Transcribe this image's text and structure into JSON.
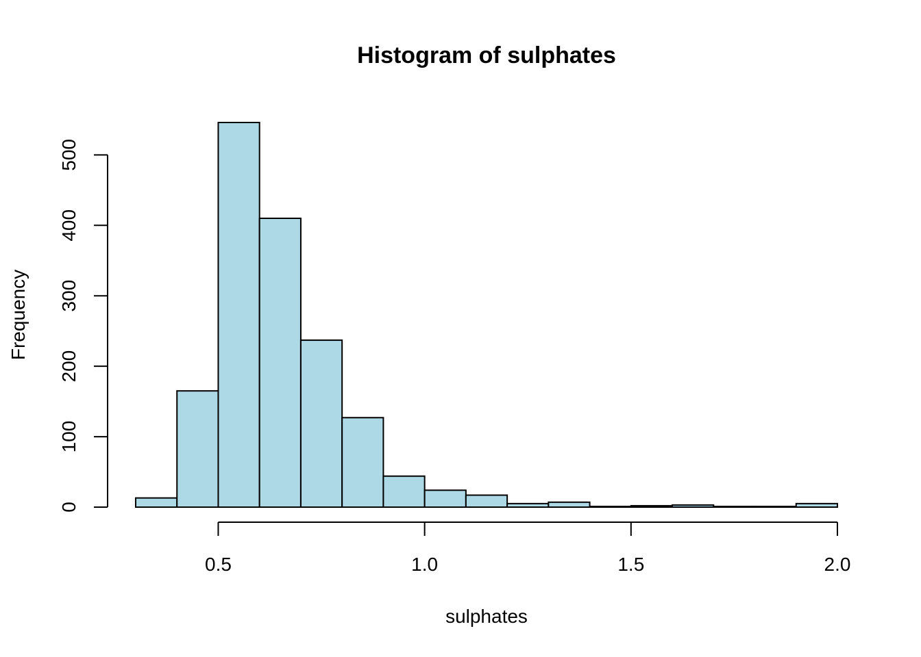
{
  "chart_data": {
    "type": "bar",
    "subtype": "histogram",
    "title": "Histogram of sulphates",
    "xlabel": "sulphates",
    "ylabel": "Frequency",
    "bin_edges": [
      0.3,
      0.4,
      0.5,
      0.6,
      0.7,
      0.8,
      0.9,
      1.0,
      1.1,
      1.2,
      1.3,
      1.4,
      1.5,
      1.6,
      1.7,
      1.8,
      1.9,
      2.0
    ],
    "values": [
      13,
      165,
      546,
      410,
      237,
      127,
      44,
      24,
      17,
      5,
      7,
      1,
      2,
      3,
      1,
      1,
      5
    ],
    "x_ticks": [
      0.5,
      1.0,
      1.5,
      2.0
    ],
    "x_tick_labels": [
      "0.5",
      "1.0",
      "1.5",
      "2.0"
    ],
    "y_ticks": [
      0,
      100,
      200,
      300,
      400,
      500
    ],
    "y_tick_labels": [
      "0",
      "100",
      "200",
      "300",
      "400",
      "500"
    ],
    "xlim": [
      0.3,
      2.0
    ],
    "ylim": [
      0,
      546
    ],
    "grid": false,
    "colors": {
      "bar_fill": "#ADD8E6",
      "bar_stroke": "#000000"
    }
  }
}
